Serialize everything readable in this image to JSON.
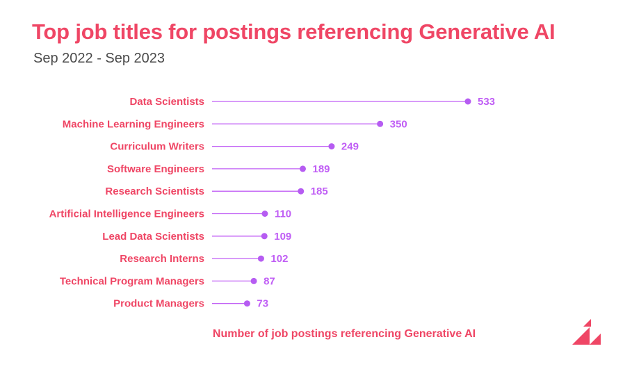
{
  "colors": {
    "title": "#ef4665",
    "label": "#ef4665",
    "line": "#c05ef5",
    "dot": "#b65cf2",
    "value": "#c05ef5",
    "logo": "#ef4665"
  },
  "logo_icon": "brand-logo-icon",
  "chart_data": {
    "type": "lollipop",
    "title": "Top job titles for postings referencing Generative AI",
    "subtitle": "Sep 2022 - Sep 2023",
    "xlabel": "Number of job postings referencing Generative AI",
    "ylabel": "",
    "grid": false,
    "legend": "none",
    "categories": [
      "Data Scientists",
      "Machine Learning Engineers",
      "Curriculum Writers",
      "Software Engineers",
      "Research Scientists",
      "Artificial Intelligence Engineers",
      "Lead Data Scientists",
      "Research Interns",
      "Technical Program Managers",
      "Product Managers"
    ],
    "values": [
      533,
      350,
      249,
      189,
      185,
      110,
      109,
      102,
      87,
      73
    ],
    "xlim": [
      0,
      533
    ]
  }
}
